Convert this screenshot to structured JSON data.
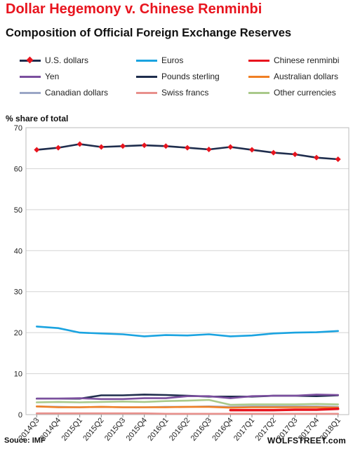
{
  "chart_data": {
    "type": "line",
    "title": "Dollar Hegemony v. Chinese Renminbi",
    "subtitle": "Composition of Official  Foreign Exchange Reserves",
    "ylabel": "% share of total",
    "xlabel": "",
    "ylim": [
      0,
      70
    ],
    "yticks": [
      0,
      10,
      20,
      30,
      40,
      50,
      60,
      70
    ],
    "grid": "horizontal",
    "legend_placement": "top",
    "categories": [
      "2014Q3",
      "2014Q4",
      "2015Q1",
      "2015Q2",
      "2015Q3",
      "2015Q4",
      "2016Q1",
      "2016Q2",
      "2016Q3",
      "2016Q4",
      "2017Q1",
      "2017Q2",
      "2017Q3",
      "2017Q4",
      "2018Q1"
    ],
    "series": [
      {
        "name": "U.S. dollars",
        "color": "#1f2d4d",
        "marker": "diamond",
        "markerColor": "#e8141e",
        "values": [
          64.6,
          65.1,
          66.0,
          65.3,
          65.5,
          65.7,
          65.5,
          65.1,
          64.7,
          65.3,
          64.6,
          63.9,
          63.5,
          62.7,
          62.3
        ]
      },
      {
        "name": "Euros",
        "color": "#1aa3e0",
        "values": [
          21.5,
          21.1,
          20.0,
          19.8,
          19.6,
          19.1,
          19.4,
          19.3,
          19.6,
          19.1,
          19.3,
          19.8,
          20.0,
          20.1,
          20.4
        ]
      },
      {
        "name": "Chinese renminbi",
        "color": "#e8141e",
        "values": [
          null,
          null,
          null,
          null,
          null,
          null,
          null,
          null,
          null,
          1.1,
          1.1,
          1.1,
          1.2,
          1.2,
          1.4
        ]
      },
      {
        "name": "Yen",
        "color": "#7b4f9e",
        "values": [
          3.9,
          3.9,
          4.0,
          3.8,
          3.8,
          4.0,
          4.0,
          4.5,
          4.5,
          4.0,
          4.5,
          4.6,
          4.6,
          4.9,
          4.8
        ]
      },
      {
        "name": "Pounds sterling",
        "color": "#1f2d4d",
        "values": [
          3.9,
          3.9,
          3.9,
          4.7,
          4.7,
          4.9,
          4.8,
          4.6,
          4.4,
          4.4,
          4.4,
          4.6,
          4.6,
          4.5,
          4.7
        ]
      },
      {
        "name": "Australian dollars",
        "color": "#f07f24",
        "values": [
          2.0,
          1.8,
          1.8,
          1.9,
          1.8,
          1.8,
          1.8,
          1.9,
          1.9,
          1.7,
          1.8,
          1.8,
          1.8,
          1.8,
          1.7
        ]
      },
      {
        "name": "Canadian dollars",
        "color": "#9aa6c6",
        "values": [
          2.0,
          1.9,
          1.8,
          1.9,
          1.8,
          1.8,
          1.9,
          1.9,
          2.0,
          1.9,
          2.0,
          2.0,
          2.0,
          2.0,
          1.9
        ]
      },
      {
        "name": "Swiss francs",
        "color": "#e8908c",
        "values": [
          0.3,
          0.3,
          0.3,
          0.3,
          0.3,
          0.3,
          0.2,
          0.2,
          0.2,
          0.2,
          0.2,
          0.2,
          0.2,
          0.2,
          0.2
        ]
      },
      {
        "name": "Other currencies",
        "color": "#a9c98a",
        "values": [
          3.0,
          3.1,
          3.0,
          3.1,
          3.2,
          3.1,
          3.3,
          3.4,
          3.6,
          2.4,
          2.5,
          2.5,
          2.5,
          2.6,
          2.5
        ]
      }
    ],
    "source": "Souce: IMF",
    "brand": "WOLFSTREET.com"
  }
}
